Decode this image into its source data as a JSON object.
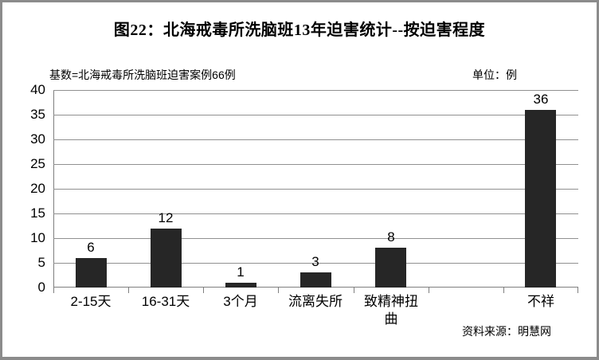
{
  "chart_data": {
    "type": "bar",
    "title": "图22：北海戒毒所洗脑班13年迫害统计--按迫害程度",
    "base_note": "基数=北海戒毒所洗脑班迫害案例66例",
    "unit_note": "单位：例",
    "source_note": "资料来源：明慧网",
    "categories": [
      "2-15天",
      "16-31天",
      "3个月",
      "流离失所",
      "致精神扭曲",
      "",
      "不祥"
    ],
    "values": [
      6,
      12,
      1,
      3,
      8,
      null,
      36
    ],
    "xlabel": "",
    "ylabel": "",
    "ylim": [
      0,
      40
    ],
    "yticks": [
      0,
      5,
      10,
      15,
      20,
      25,
      30,
      35,
      40
    ],
    "grid": true,
    "legend": false,
    "bar_color": "#262626",
    "grid_color": "#909090",
    "axis_color": "#7f7f7f",
    "border_color": "#8b8b8b"
  }
}
